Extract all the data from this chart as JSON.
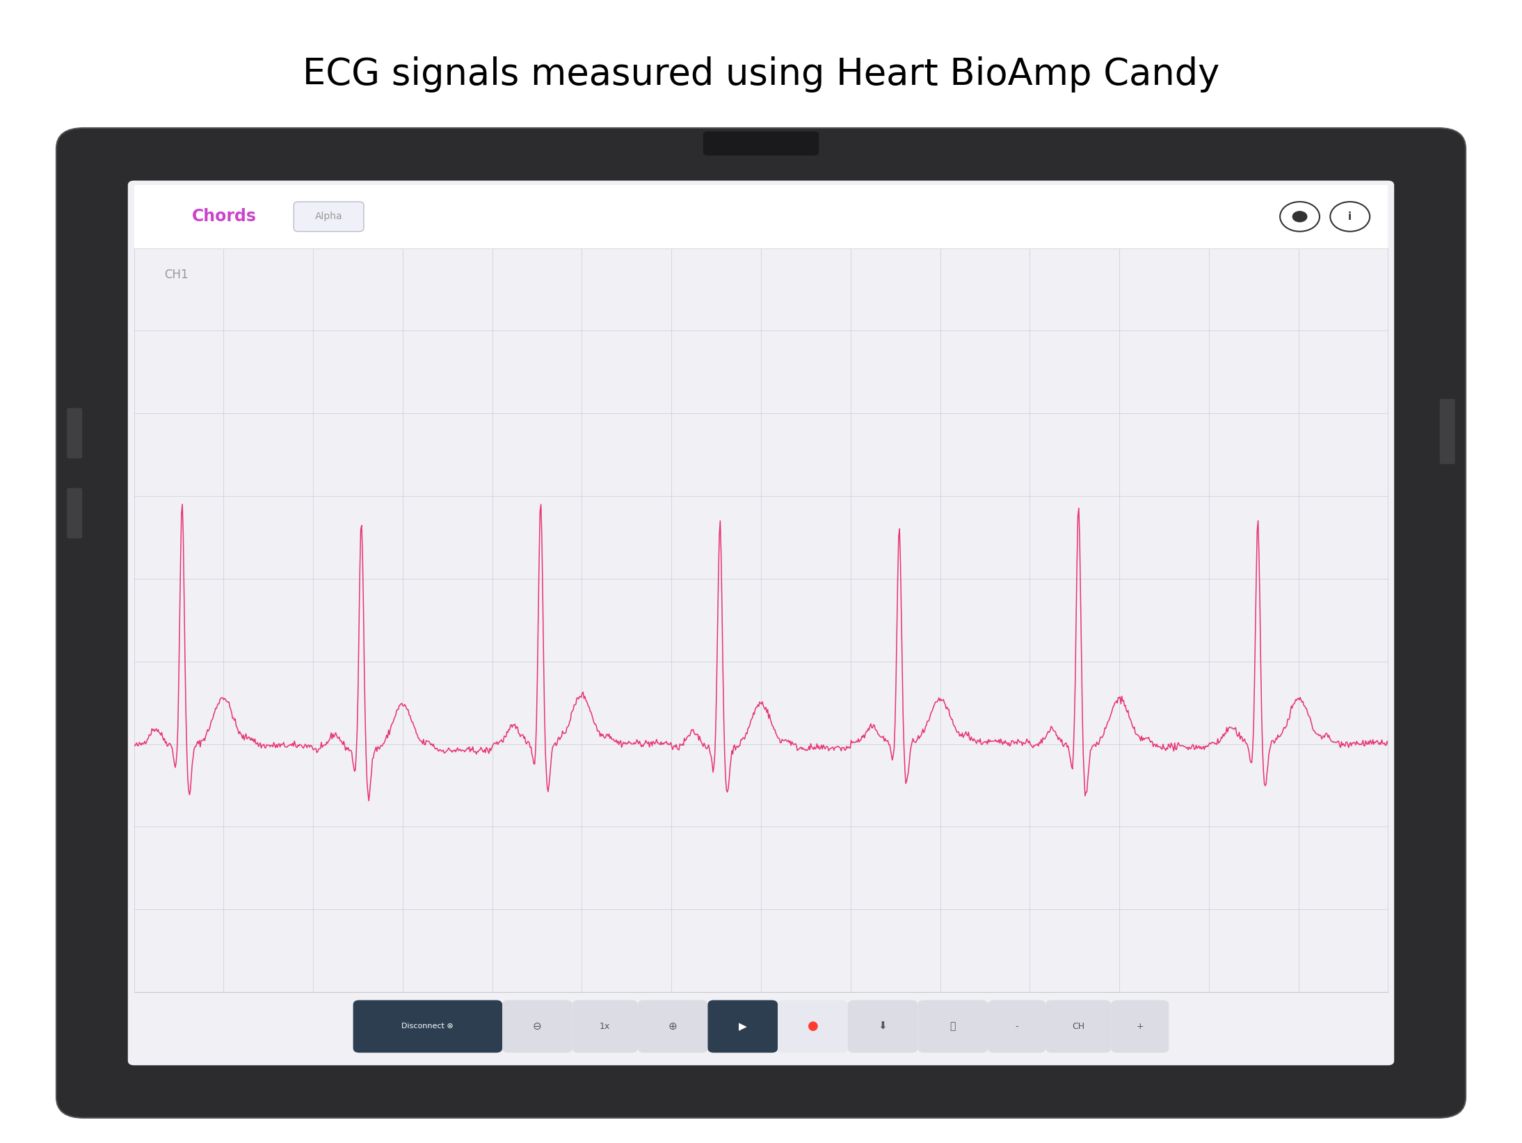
{
  "title": "ECG signals measured using Heart BioAmp Candy",
  "title_fontsize": 38,
  "title_color": "#000000",
  "background_color": "#ffffff",
  "tablet_bg": "#2c2c2e",
  "tablet_screen_bg": "#f0f0f5",
  "header_bg": "#ffffff",
  "chords_color": "#cc44cc",
  "alpha_color": "#999999",
  "ch1_color": "#aaaaaa",
  "ecg_color": "#e8336d",
  "grid_color": "#c8c8d4",
  "toolbar_bg": "#f0f0f5",
  "icon_color": "#333333",
  "dark_btn_bg": "#2c3e50",
  "dark_btn_fg": "#ffffff",
  "light_btn_bg": "#dcdce4",
  "light_btn_fg": "#555555",
  "record_btn_color": "#ff3b30"
}
